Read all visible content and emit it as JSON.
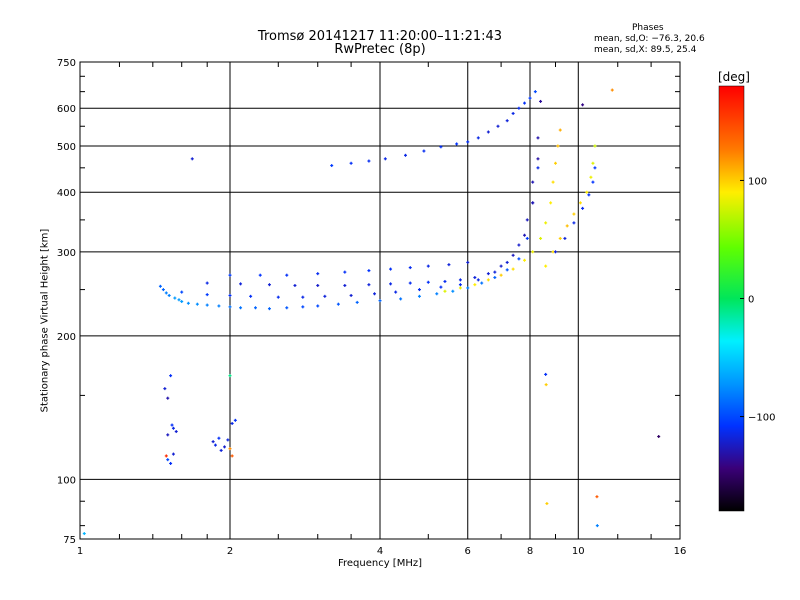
{
  "header": {
    "title_line1": "Tromsø 20141217 11:20:00–11:21:43",
    "title_line2": "RwPretec (8p)",
    "stats_title": "Phases",
    "stats_line1": "mean, sd,O: −76.3, 20.6",
    "stats_line2": "mean, sd,X:  89.5, 25.4"
  },
  "chart_data": {
    "type": "scatter",
    "xlabel": "Frequency [MHz]",
    "ylabel": "Stationary phase Virtual Height [km]",
    "x_scale": "log",
    "y_scale": "log",
    "xlim": [
      1,
      16
    ],
    "ylim": [
      75,
      750
    ],
    "x_ticks": [
      1,
      2,
      4,
      6,
      8,
      10,
      16
    ],
    "x_tick_labels": [
      "1",
      "2",
      "4",
      "6",
      "8",
      "10",
      "16"
    ],
    "y_ticks": [
      75,
      100,
      200,
      300,
      400,
      500,
      600,
      750
    ],
    "y_tick_labels": [
      "75",
      "100",
      "200",
      "300",
      "400",
      "500",
      "600",
      "750"
    ],
    "grid": true,
    "colorbar": {
      "label": "[deg]",
      "range": [
        -180,
        180
      ],
      "ticks": [
        100,
        0,
        -100
      ],
      "tick_labels": [
        "100",
        "0",
        "−100"
      ]
    },
    "series": [
      {
        "x": [
          1.45,
          1.47,
          1.49,
          1.51,
          1.55,
          1.58,
          1.6,
          1.65,
          1.72,
          1.8,
          1.9,
          2.0,
          2.1,
          2.25,
          2.4,
          2.6,
          2.8,
          3.0,
          3.3,
          3.6,
          4.0,
          4.4,
          4.8,
          5.2,
          5.6,
          6.0,
          6.4,
          6.8,
          7.2,
          7.6,
          7.9,
          8.1,
          8.3
        ],
        "y": [
          254,
          250,
          246,
          243,
          240,
          238,
          236,
          234,
          233,
          232,
          231,
          230,
          229,
          229,
          228,
          229,
          230,
          231,
          233,
          235,
          237,
          239,
          242,
          245,
          248,
          252,
          258,
          265,
          275,
          290,
          320,
          380,
          450
        ],
        "phase": [
          -90,
          -90,
          -80,
          -80,
          -70,
          -70,
          -70,
          -75,
          -75,
          -80,
          -80,
          -85,
          -85,
          -90,
          -90,
          -95,
          -100,
          -100,
          -95,
          -90,
          -90,
          -85,
          -80,
          -80,
          -75,
          -80,
          -85,
          -90,
          -95,
          -100,
          -105,
          -110,
          -115
        ]
      },
      {
        "x": [
          1.6,
          1.8,
          2.0,
          2.2,
          2.5,
          2.8,
          3.1,
          3.5,
          3.9,
          4.3,
          4.8,
          5.3,
          5.8,
          6.3,
          6.8,
          7.2,
          7.6,
          7.9,
          8.1,
          8.3
        ],
        "y": [
          247,
          244,
          243,
          242,
          241,
          241,
          242,
          243,
          245,
          247,
          250,
          253,
          256,
          262,
          272,
          285,
          310,
          350,
          420,
          520
        ],
        "phase": [
          -100,
          -105,
          -110,
          -110,
          -112,
          -115,
          -118,
          -120,
          -118,
          -115,
          -112,
          -110,
          -112,
          -115,
          -118,
          -120,
          -122,
          -125,
          -128,
          -130
        ]
      },
      {
        "x": [
          1.8,
          2.1,
          2.4,
          2.7,
          3.0,
          3.4,
          3.8,
          4.2,
          4.6,
          5.0,
          5.4,
          5.8,
          6.2,
          6.6,
          7.0,
          7.4,
          7.8,
          8.1,
          8.3,
          8.4
        ],
        "y": [
          258,
          257,
          256,
          255,
          255,
          255,
          256,
          257,
          258,
          259,
          260,
          262,
          265,
          270,
          280,
          295,
          325,
          380,
          470,
          620
        ],
        "phase": [
          -115,
          -118,
          -120,
          -120,
          -122,
          -120,
          -118,
          -115,
          -112,
          -110,
          -112,
          -115,
          -118,
          -120,
          -122,
          -125,
          -128,
          -130,
          -132,
          -135
        ]
      },
      {
        "x": [
          2.0,
          2.3,
          2.6,
          3.0,
          3.4,
          3.8,
          4.2,
          4.6,
          5.0,
          5.5,
          6.0
        ],
        "y": [
          268,
          268,
          268,
          270,
          272,
          274,
          276,
          278,
          280,
          282,
          285
        ],
        "phase": [
          -105,
          -108,
          -110,
          -112,
          -110,
          -108,
          -110,
          -112,
          -115,
          -118,
          -120
        ]
      },
      {
        "x": [
          3.2,
          3.5,
          3.8,
          4.1,
          4.5,
          4.9,
          5.3,
          5.7,
          6.0,
          6.3,
          6.6,
          6.9,
          7.2,
          7.4,
          7.6,
          7.8,
          8.0,
          8.2
        ],
        "y": [
          455,
          460,
          465,
          470,
          478,
          488,
          498,
          505,
          510,
          520,
          535,
          550,
          565,
          585,
          600,
          615,
          630,
          650
        ],
        "phase": [
          -105,
          -110,
          -112,
          -115,
          -115,
          -112,
          -110,
          -108,
          -110,
          -115,
          -120,
          -120,
          -118,
          -115,
          -112,
          -110,
          -105,
          -100
        ]
      },
      {
        "x": [
          5.4,
          5.8,
          6.2,
          6.6,
          7.0,
          7.4,
          7.8,
          8.1,
          8.4,
          8.6,
          8.8,
          8.9,
          9.0,
          9.1,
          9.2
        ],
        "y": [
          248,
          252,
          256,
          262,
          268,
          276,
          288,
          300,
          320,
          345,
          380,
          420,
          460,
          500,
          540
        ],
        "phase": [
          80,
          85,
          90,
          95,
          100,
          95,
          90,
          85,
          80,
          85,
          90,
          95,
          100,
          105,
          110
        ]
      },
      {
        "x": [
          8.6,
          8.9,
          9.2,
          9.5,
          9.8,
          10.1,
          10.4,
          10.6,
          10.7,
          10.8
        ],
        "y": [
          280,
          300,
          320,
          340,
          360,
          380,
          400,
          430,
          460,
          500
        ],
        "phase": [
          90,
          95,
          100,
          105,
          100,
          95,
          90,
          85,
          80,
          75
        ]
      },
      {
        "x": [
          9.0,
          9.4,
          9.8,
          10.2,
          10.5,
          10.7,
          10.8
        ],
        "y": [
          300,
          320,
          345,
          370,
          395,
          420,
          450
        ],
        "phase": [
          -120,
          -118,
          -115,
          -112,
          -110,
          -108,
          -105
        ]
      },
      {
        "x": [
          1.48,
          1.5,
          1.52,
          1.54,
          1.56,
          1.5,
          1.53,
          1.49,
          1.5,
          1.52,
          1.54
        ],
        "y": [
          155,
          148,
          165,
          128,
          126,
          124,
          130,
          112,
          110,
          108,
          113
        ],
        "phase": [
          -120,
          -130,
          -110,
          -115,
          -120,
          -125,
          -110,
          160,
          -100,
          -110,
          -120
        ]
      },
      {
        "x": [
          1.85,
          1.87,
          1.9,
          1.92,
          1.95,
          1.98,
          2.0,
          2.05,
          2.02
        ],
        "y": [
          120,
          118,
          122,
          115,
          117,
          121,
          116,
          133,
          131
        ],
        "phase": [
          -120,
          -115,
          -110,
          -118,
          -122,
          -116,
          120,
          -110,
          -115
        ]
      },
      {
        "x": [
          1.02,
          1.68,
          2.0,
          2.02,
          8.6,
          8.62,
          8.65,
          10.9,
          10.92,
          11.7,
          14.5,
          10.2
        ],
        "y": [
          77,
          470,
          165,
          112,
          166,
          158,
          89,
          92,
          80,
          655,
          123,
          610
        ],
        "phase": [
          -60,
          -120,
          -10,
          140,
          -110,
          100,
          100,
          140,
          -80,
          120,
          -150,
          -140
        ]
      }
    ]
  }
}
